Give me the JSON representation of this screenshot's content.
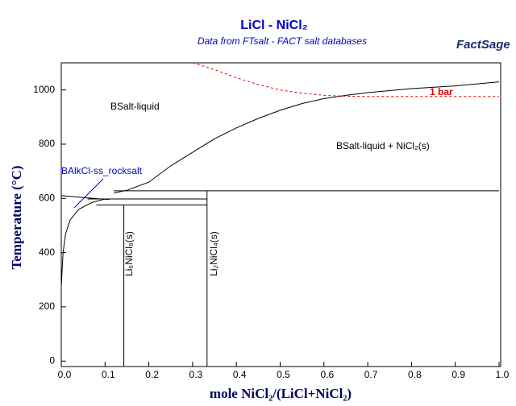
{
  "chart_data": {
    "type": "phase-diagram",
    "title": "LiCl - NiCl₂",
    "subtitle": "Data from FTsalt - FACT salt databases",
    "logo": "FactSage",
    "x_label": "mole NiCl₂/(LiCl+NiCl₂)",
    "y_label": "Temperature (°C)",
    "xlim": [
      0,
      1
    ],
    "ylim": [
      -20,
      1100
    ],
    "xticks": [
      {
        "value": 0,
        "label": "0.0"
      },
      0.1,
      0.2,
      0.3,
      0.4,
      0.5,
      0.6,
      0.7,
      0.8,
      0.9,
      {
        "value": 1,
        "label": "1.0"
      }
    ],
    "yticks": [
      0,
      200,
      400,
      600,
      800,
      1000
    ],
    "lines": [
      {
        "color": "#000000",
        "x": [
          0.12,
          0.15,
          0.2,
          0.25,
          0.3,
          0.35,
          0.4,
          0.45,
          0.5,
          0.55,
          0.6,
          0.65,
          0.7,
          0.8,
          0.9,
          1.0
        ],
        "y": [
          620,
          630,
          660,
          720,
          770,
          820,
          860,
          895,
          925,
          950,
          968,
          980,
          990,
          1005,
          1015,
          1030
        ]
      },
      {
        "color": "#000000",
        "x": [
          0,
          0.03,
          0.06,
          0.09,
          0.11
        ],
        "y": [
          610,
          606,
          602,
          598,
          596
        ]
      },
      {
        "color": "#000000",
        "x": [
          0,
          0.004,
          0.01,
          0.02,
          0.04,
          0.07,
          0.1
        ],
        "y": [
          275,
          400,
          470,
          520,
          560,
          585,
          598
        ]
      },
      {
        "color": "#000000",
        "x": [
          0.12,
          1.0
        ],
        "y": [
          628,
          628
        ]
      },
      {
        "color": "#000000",
        "x": [
          0.06,
          0.333
        ],
        "y": [
          598,
          598
        ]
      },
      {
        "color": "#000000",
        "x": [
          0.08,
          0.333
        ],
        "y": [
          576,
          576
        ]
      },
      {
        "color": "#000000",
        "x": [
          0.143,
          0.143
        ],
        "y": [
          -20,
          576
        ]
      },
      {
        "color": "#000000",
        "x": [
          0.333,
          0.333
        ],
        "y": [
          -20,
          628
        ]
      },
      {
        "color": "#dd0000",
        "dashed": true,
        "x": [
          0.3,
          0.35,
          0.4,
          0.45,
          0.5,
          0.55,
          0.6,
          0.65,
          0.7,
          1.0
        ],
        "y": [
          1100,
          1075,
          1045,
          1020,
          1000,
          988,
          980,
          977,
          976,
          976
        ]
      }
    ],
    "annotations": [
      "BSalt-liquid",
      "BSalt-liquid + NiCl₂(s)",
      "BAlkCl-ss_rocksalt",
      "1 bar",
      "Li₆NiCl₈(s)",
      "Li₂NiCl₄(s)"
    ]
  }
}
